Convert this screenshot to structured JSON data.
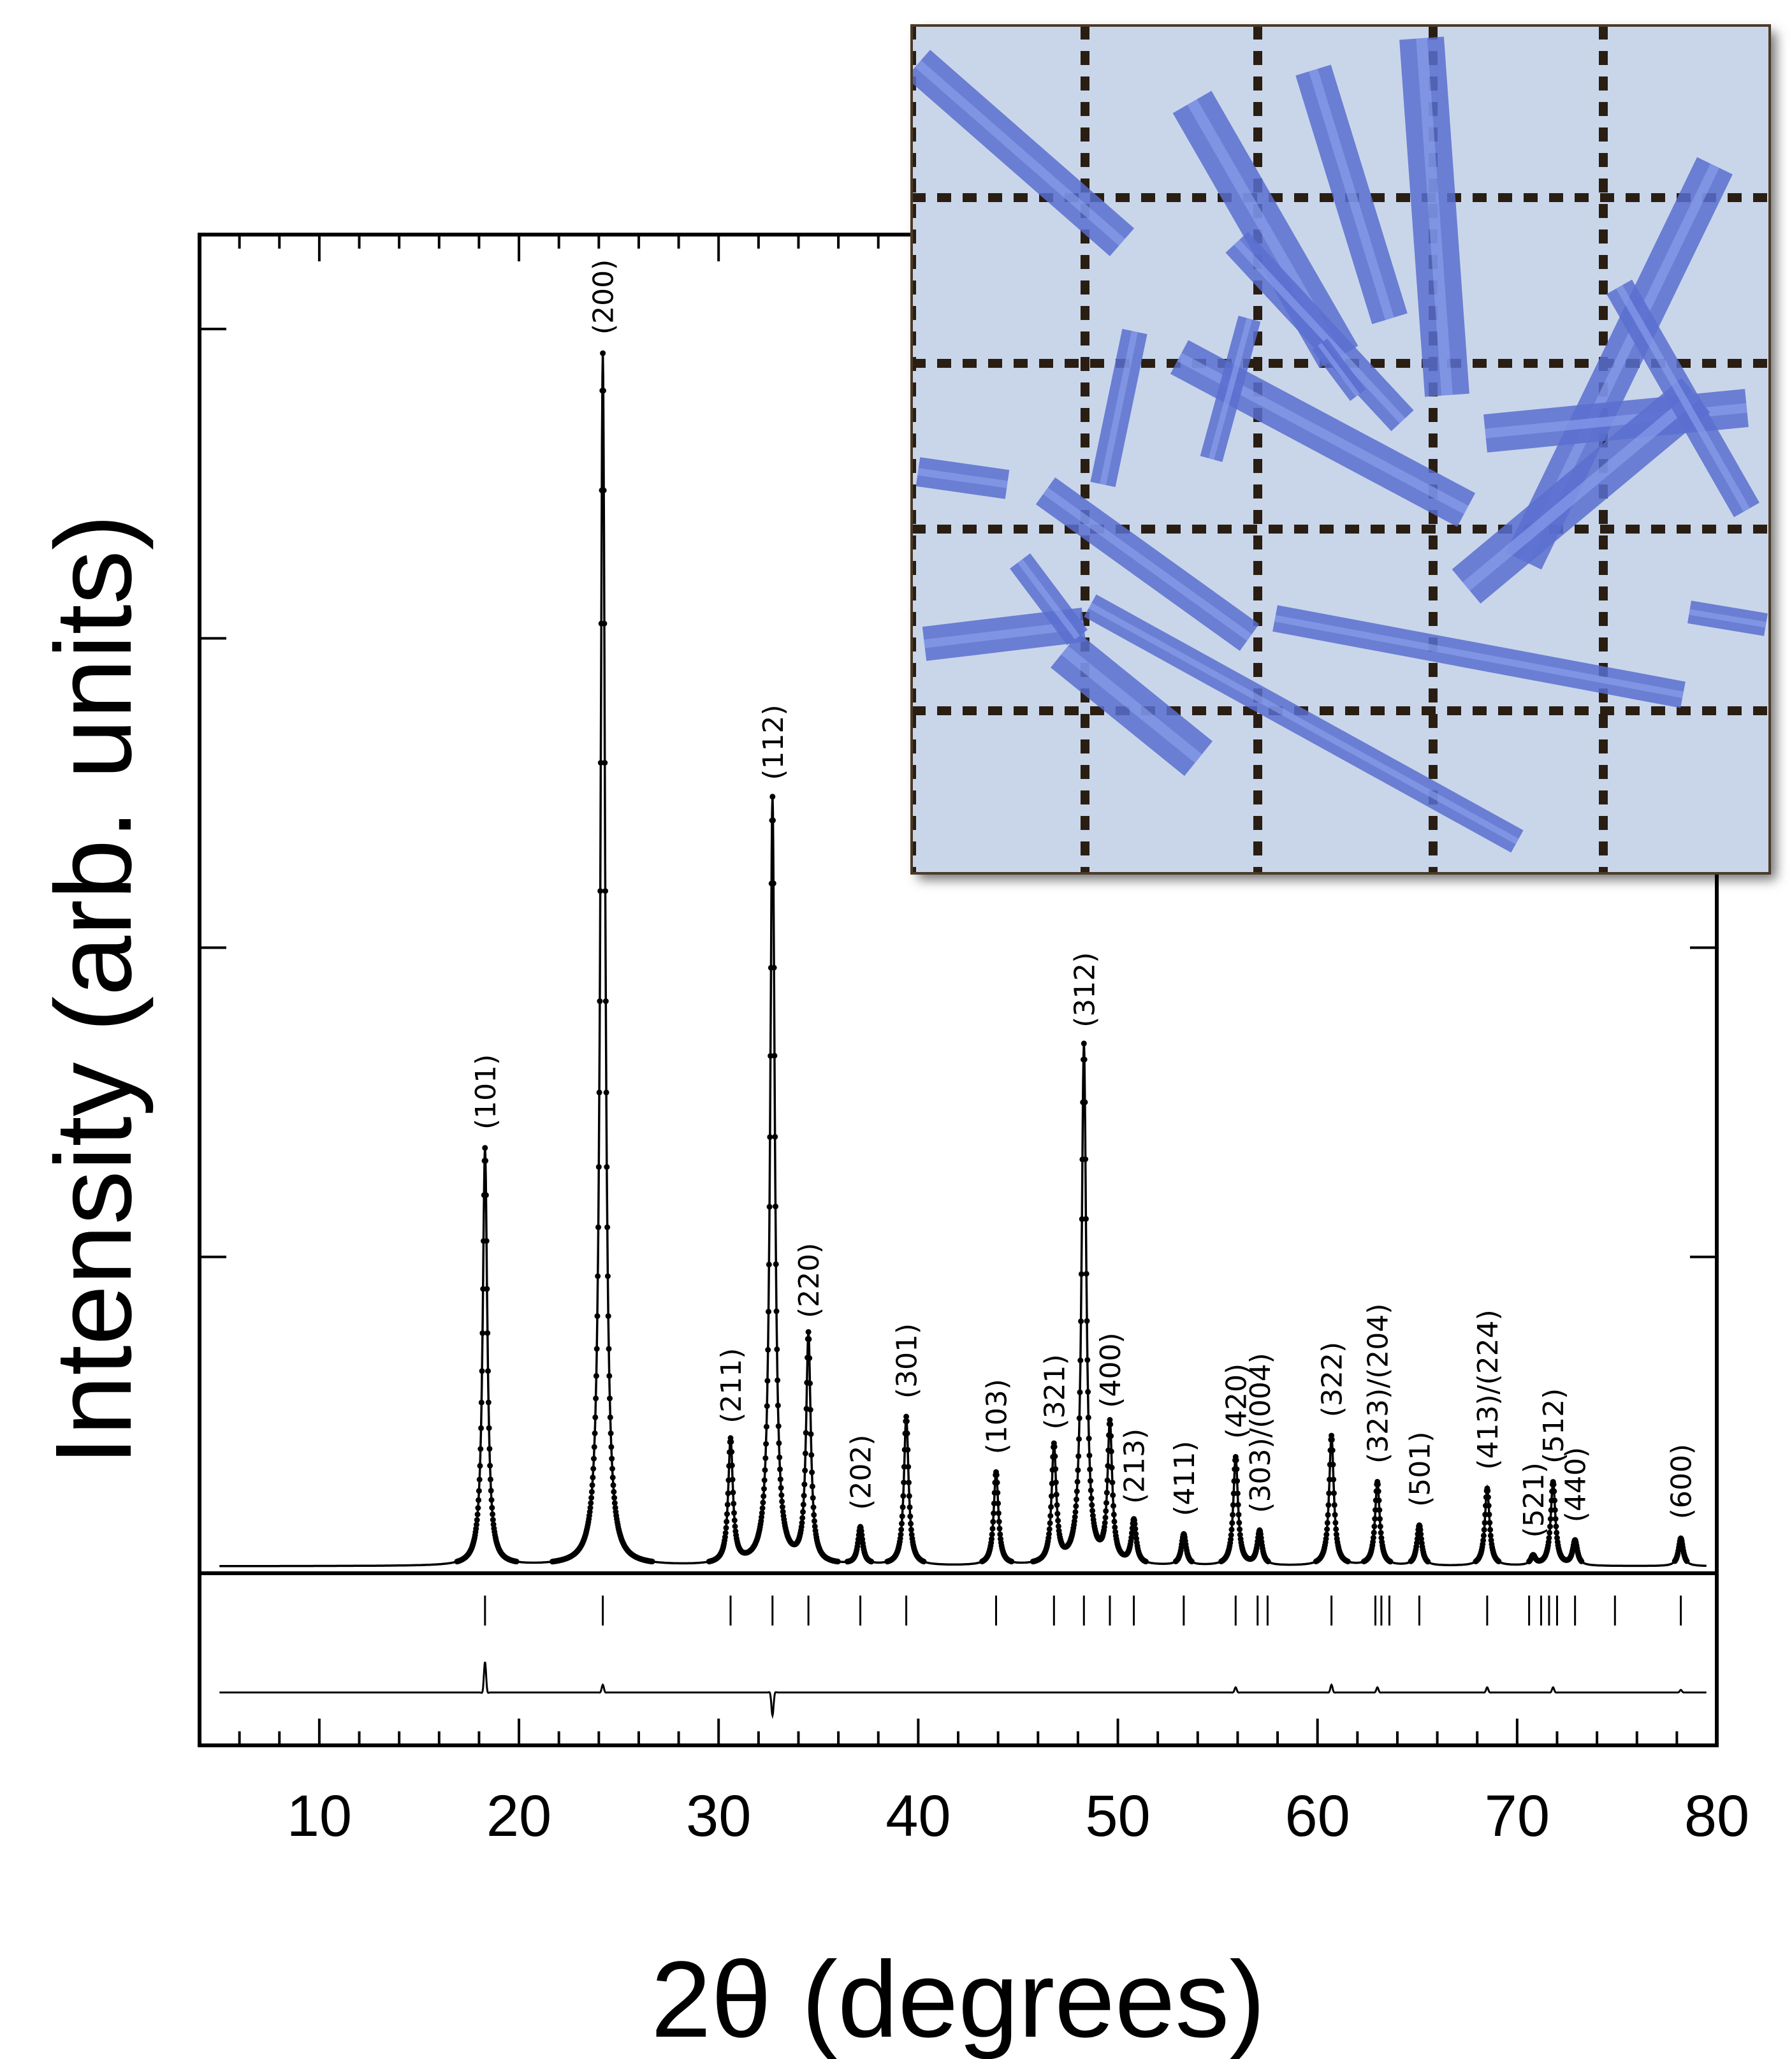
{
  "chart_data": {
    "type": "line",
    "xlabel": "2θ (degrees)",
    "ylabel": "Intensity (arb. units)",
    "xlim": [
      4,
      80
    ],
    "ylim": [
      0,
      4.0
    ],
    "xticks": [
      10,
      20,
      30,
      40,
      50,
      60,
      70,
      80
    ],
    "xtick_labels": [
      "10",
      "20",
      "30",
      "40",
      "50",
      "60",
      "70",
      "80"
    ],
    "yticks": [
      1,
      2,
      3,
      4
    ],
    "grid": false,
    "peak_width": 0.14,
    "peaks": [
      {
        "x": 18.3,
        "y": 1.35,
        "label": "(101)"
      },
      {
        "x": 24.2,
        "y": 3.92,
        "label": "(200)"
      },
      {
        "x": 30.6,
        "y": 0.4,
        "label": "(211)"
      },
      {
        "x": 32.7,
        "y": 2.48,
        "label": "(112)"
      },
      {
        "x": 34.5,
        "y": 0.74,
        "label": "(220)"
      },
      {
        "x": 37.1,
        "y": 0.12,
        "label": "(202)"
      },
      {
        "x": 39.4,
        "y": 0.48,
        "label": "(301)"
      },
      {
        "x": 43.9,
        "y": 0.3,
        "label": "(103)"
      },
      {
        "x": 46.8,
        "y": 0.38,
        "label": "(321)"
      },
      {
        "x": 48.3,
        "y": 1.68,
        "label": "(312)"
      },
      {
        "x": 49.6,
        "y": 0.45,
        "label": "(400)"
      },
      {
        "x": 50.8,
        "y": 0.14,
        "label": "(213)"
      },
      {
        "x": 53.3,
        "y": 0.1,
        "label": "(411)"
      },
      {
        "x": 55.9,
        "y": 0.35,
        "label": "(420)"
      },
      {
        "x": 57.1,
        "y": 0.11,
        "label": "(303)/(004)"
      },
      {
        "x": 60.7,
        "y": 0.42,
        "label": "(322)"
      },
      {
        "x": 63.0,
        "y": 0.27,
        "label": "(323)/(204)"
      },
      {
        "x": 65.1,
        "y": 0.13,
        "label": "(501)"
      },
      {
        "x": 68.5,
        "y": 0.25,
        "label": "(413)/(224)"
      },
      {
        "x": 70.8,
        "y": 0.03,
        "label": "(521)"
      },
      {
        "x": 71.8,
        "y": 0.27,
        "label": "(512)"
      },
      {
        "x": 72.9,
        "y": 0.08,
        "label": "(440)"
      },
      {
        "x": 78.2,
        "y": 0.09,
        "label": "(600)"
      }
    ],
    "bragg_positions": [
      18.3,
      24.2,
      30.6,
      32.7,
      34.5,
      37.1,
      39.4,
      43.9,
      46.8,
      48.3,
      49.6,
      50.8,
      53.3,
      55.9,
      57.0,
      57.5,
      60.7,
      62.9,
      63.2,
      63.6,
      65.1,
      68.5,
      70.6,
      71.2,
      71.6,
      72.0,
      72.9,
      74.9,
      78.2
    ],
    "difference_features": [
      {
        "x": 18.3,
        "d": 0.12
      },
      {
        "x": 24.2,
        "d": 0.03
      },
      {
        "x": 32.7,
        "d": -0.09
      },
      {
        "x": 55.9,
        "d": 0.02
      },
      {
        "x": 60.7,
        "d": 0.03
      },
      {
        "x": 63.0,
        "d": 0.02
      },
      {
        "x": 68.5,
        "d": 0.02
      },
      {
        "x": 71.8,
        "d": 0.02
      },
      {
        "x": 78.2,
        "d": 0.01
      }
    ]
  },
  "inset": {
    "description_icon": "crystal-photo",
    "background": "#c9d6ea",
    "crystal_color": "#5a6fd0",
    "grid_color": "#2a1e12"
  }
}
